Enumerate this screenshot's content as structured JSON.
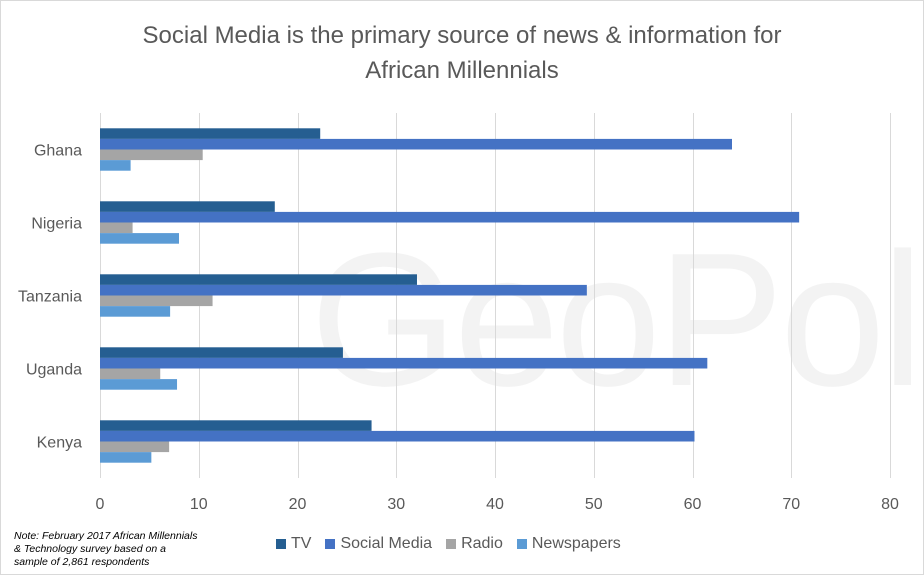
{
  "chart_data": {
    "type": "bar",
    "orientation": "horizontal",
    "title": "Social Media is the primary source of news & information for African Millennials",
    "title_lines": [
      "Social Media is the primary source of news & information for",
      "African Millennials"
    ],
    "categories": [
      "Ghana",
      "Nigeria",
      "Tanzania",
      "Uganda",
      "Kenya"
    ],
    "series": [
      {
        "name": "TV",
        "color": "#255e91",
        "values": [
          22.3,
          17.7,
          32.1,
          24.6,
          27.5
        ]
      },
      {
        "name": "Social Media",
        "color": "#4472c4",
        "values": [
          64.0,
          70.8,
          49.3,
          61.5,
          60.2
        ]
      },
      {
        "name": "Radio",
        "color": "#a5a5a5",
        "values": [
          10.4,
          3.3,
          11.4,
          6.1,
          7.0
        ]
      },
      {
        "name": "Newspapers",
        "color": "#5b9bd5",
        "values": [
          3.1,
          8.0,
          7.1,
          7.8,
          5.2
        ]
      }
    ],
    "xlim": [
      0,
      80
    ],
    "xticks": [
      0,
      10,
      20,
      30,
      40,
      50,
      60,
      70,
      80
    ],
    "xlabel": "",
    "ylabel": "",
    "grid": "vertical",
    "legend": "bottom"
  },
  "note": [
    "Note: February 2017 African Millennials",
    "& Technology survey based on a",
    "sample of 2,861 respondents"
  ],
  "watermark": "GeoPoll"
}
